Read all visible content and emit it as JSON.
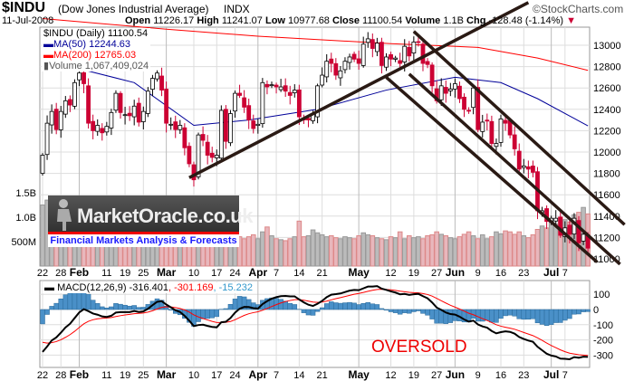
{
  "header": {
    "symbol": "$INDU",
    "name": "(Dow Jones Industrial Average)",
    "exchange": "INDX",
    "date": "11-Jul-2008",
    "open_label": "Open",
    "open": "11226.17",
    "high_label": "High",
    "high": "11241.07",
    "low_label": "Low",
    "low": "10977.68",
    "close_label": "Close",
    "close": "11100.54",
    "volume_label": "Volume",
    "volume": "1.1B",
    "chg_label": "Chg",
    "chg": "-128.48 (-1.14%)",
    "chg_arrow": "▼",
    "brand": "©StockCharts.com"
  },
  "legend": {
    "price": "$INDU (Daily) 11100.54",
    "ma50": "MA(50) 12244.63",
    "ma200": "MA(200) 12765.03",
    "volume": "Volume 1,067,409,024"
  },
  "macd_legend": {
    "label": "MACD(12,26,9)",
    "macd": "-316.401",
    "signal": ", -301.169",
    "hist": ", -15.232"
  },
  "annotation": "OVERSOLD",
  "logo": {
    "name": "MarketOracle.co.uk",
    "tagline": "Financial Markets Analysis & Forecasts"
  },
  "colors": {
    "up": "#ffffff",
    "down": "#cc0033",
    "ma50": "#000099",
    "ma200": "#ff0000",
    "trend": "#2a1a14",
    "vol_up": "#bbbbbb",
    "vol_down": "#e8b7bc",
    "hist": "#4a90c8"
  },
  "chart_data": {
    "type": "candlestick",
    "title": "$INDU (Daily)",
    "ylim": [
      10950,
      13150
    ],
    "price_ticks": [
      "13000",
      "12800",
      "12600",
      "12400",
      "12200",
      "12000",
      "11800",
      "11600",
      "11400",
      "11200",
      "11000"
    ],
    "volume_ticks": [
      "1.5B",
      "1.0B",
      "500M"
    ],
    "macd_ticks": [
      "100",
      "0",
      "-100",
      "-200",
      "-300"
    ],
    "x_labels": [
      {
        "i": 0,
        "t": "22"
      },
      {
        "i": 4,
        "t": "28"
      },
      {
        "i": 8,
        "t": "Feb",
        "m": true
      },
      {
        "i": 14,
        "t": "11"
      },
      {
        "i": 18,
        "t": "19"
      },
      {
        "i": 22,
        "t": "25"
      },
      {
        "i": 27,
        "t": "Mar",
        "m": true
      },
      {
        "i": 33,
        "t": "10"
      },
      {
        "i": 38,
        "t": "17"
      },
      {
        "i": 42,
        "t": "24"
      },
      {
        "i": 47,
        "t": "Apr",
        "m": true
      },
      {
        "i": 51,
        "t": "7"
      },
      {
        "i": 56,
        "t": "14"
      },
      {
        "i": 61,
        "t": "21"
      },
      {
        "i": 69,
        "t": "May",
        "m": true
      },
      {
        "i": 76,
        "t": "12"
      },
      {
        "i": 81,
        "t": "19"
      },
      {
        "i": 86,
        "t": "27"
      },
      {
        "i": 90,
        "t": "Jun",
        "m": true
      },
      {
        "i": 95,
        "t": "9"
      },
      {
        "i": 100,
        "t": "16"
      },
      {
        "i": 105,
        "t": "23"
      },
      {
        "i": 111,
        "t": "Jul",
        "m": true
      },
      {
        "i": 114,
        "t": "7"
      }
    ],
    "closes": [
      11970,
      12270,
      12380,
      12210,
      12380,
      12480,
      12440,
      12650,
      12740,
      12640,
      12270,
      12200,
      12250,
      12180,
      12240,
      12370,
      12550,
      12370,
      12350,
      12340,
      12430,
      12280,
      12380,
      12570,
      12690,
      12740,
      12580,
      12270,
      12260,
      12210,
      12250,
      12040,
      11890,
      11740,
      12160,
      12110,
      11970,
      11950,
      11970,
      12390,
      12100,
      12360,
      12550,
      12530,
      12420,
      12300,
      12220,
      12260,
      12650,
      12610,
      12630,
      12610,
      12610,
      12570,
      12530,
      12580,
      12330,
      12300,
      12300,
      12360,
      12620,
      12720,
      12850,
      12830,
      12720,
      12760,
      12850,
      12890,
      12870,
      12830,
      13010,
      13060,
      12970,
      13020,
      12810,
      12890,
      12870,
      12880,
      12830,
      12990,
      12900,
      13030,
      13030,
      12830,
      12820,
      12620,
      12480,
      12620,
      12550,
      12590,
      12640,
      12500,
      12400,
      12390,
      12600,
      12210,
      12280,
      12290,
      12080,
      12080,
      12310,
      12270,
      12160,
      12030,
      11840,
      11870,
      11840,
      11810,
      11450,
      11450,
      11350,
      11380,
      11380,
      11220,
      11290,
      11230,
      11380,
      11150,
      11230,
      11100
    ],
    "volume_millions": [
      1250,
      1350,
      950,
      900,
      820,
      780,
      800,
      850,
      900,
      720,
      650,
      640,
      620,
      600,
      580,
      620,
      700,
      640,
      610,
      580,
      620,
      560,
      600,
      650,
      640,
      620,
      600,
      700,
      680,
      620,
      640,
      700,
      720,
      760,
      720,
      640,
      620,
      660,
      700,
      900,
      760,
      640,
      620,
      600,
      560,
      600,
      640,
      560,
      700,
      800,
      620,
      560,
      540,
      520,
      560,
      600,
      920,
      600,
      620,
      740,
      680,
      640,
      600,
      620,
      580,
      560,
      600,
      580,
      560,
      620,
      680,
      640,
      620,
      580,
      560,
      540,
      600,
      580,
      700,
      560,
      620,
      580,
      600,
      560,
      620,
      640,
      700,
      650,
      620,
      580,
      560,
      600,
      650,
      700,
      620,
      560,
      640,
      560,
      600,
      700,
      660,
      720,
      700,
      650,
      700,
      620,
      580,
      640,
      750,
      820,
      780,
      900,
      860,
      1000,
      950,
      900,
      1050,
      1100,
      1200,
      1067
    ],
    "ma50": [
      [
        0,
        12850
      ],
      [
        8,
        12780
      ],
      [
        20,
        12650
      ],
      [
        33,
        12250
      ],
      [
        45,
        12300
      ],
      [
        60,
        12400
      ],
      [
        75,
        12580
      ],
      [
        90,
        12700
      ],
      [
        100,
        12650
      ],
      [
        108,
        12500
      ],
      [
        119,
        12245
      ]
    ],
    "ma200": [
      [
        0,
        13250
      ],
      [
        27,
        13150
      ],
      [
        47,
        13085
      ],
      [
        76,
        13015
      ],
      [
        95,
        12980
      ],
      [
        108,
        12880
      ],
      [
        119,
        12765
      ]
    ],
    "trendlines": [
      [
        [
          32,
          11760
        ],
        [
          106,
          13400
        ]
      ],
      [
        [
          81,
          13130
        ],
        [
          127,
          11320
        ]
      ],
      [
        [
          80,
          12730
        ],
        [
          126,
          10950
        ]
      ],
      [
        [
          75,
          12700
        ],
        [
          121,
          10970
        ]
      ]
    ]
  }
}
